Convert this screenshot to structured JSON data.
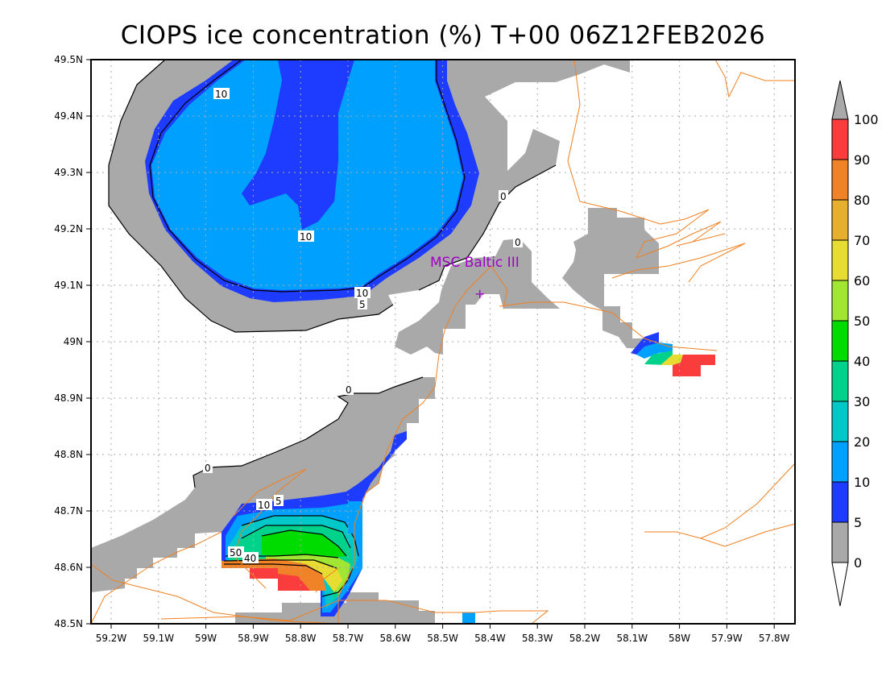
{
  "title": "CIOPS ice concentration (%) T+00 06Z12FEB2026",
  "station": {
    "label": "MSC Baltic III",
    "marker": "+",
    "color": "#a000c8"
  },
  "map": {
    "lon_labels": [
      "59.2W",
      "59.1W",
      "59W",
      "58.9W",
      "58.8W",
      "58.7W",
      "58.6W",
      "58.5W",
      "58.4W",
      "58.3W",
      "58.2W",
      "58.1W",
      "58W",
      "57.9W",
      "57.8W"
    ],
    "lat_labels": [
      "49.5N",
      "49.4N",
      "49.3N",
      "49.2N",
      "49.1N",
      "49N",
      "48.9N",
      "48.8N",
      "48.7N",
      "48.6N",
      "48.5N"
    ],
    "lon_range": [
      "59.24W",
      "57.76W"
    ],
    "lat_range": [
      "48.5N",
      "49.5N"
    ],
    "contour_labels": [
      "10",
      "10",
      "10",
      "5",
      "0",
      "0",
      "0",
      "0",
      "10",
      "5",
      "50",
      "40"
    ]
  },
  "colorbar": {
    "levels": [
      "0",
      "5",
      "10",
      "20",
      "30",
      "40",
      "50",
      "60",
      "70",
      "80",
      "90",
      "100"
    ],
    "colors": [
      "#a9a9a9",
      "#1e3cff",
      "#00a0ff",
      "#00c8c8",
      "#00d28c",
      "#00dc00",
      "#a0e632",
      "#e6dc32",
      "#e6af2d",
      "#f08228",
      "#fa3c3c"
    ],
    "under_color": "#ffffff",
    "over_color": "#a9a9a9"
  }
}
